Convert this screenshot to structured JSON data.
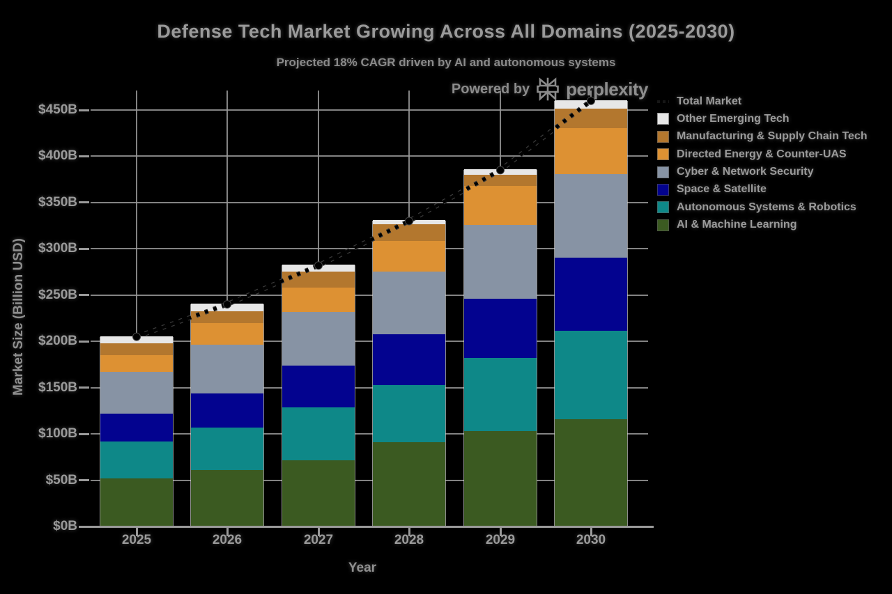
{
  "title": "Defense Tech Market Growing Across All Domains (2025-2030)",
  "subtitle": "Projected 18% CAGR driven by AI and autonomous systems",
  "powered_by": {
    "prefix": "Powered by",
    "brand": "perplexity"
  },
  "colors": {
    "background": "#000000",
    "title_text": "#9a9a9a",
    "subtitle_text": "#8a8a8a",
    "axis_text": "#9a9a9a",
    "gridline": "#9a9a9a",
    "total_line": "#000000"
  },
  "chart_data": {
    "type": "bar",
    "stacked": true,
    "title": "Defense Tech Market Growing Across All Domains (2025-2030)",
    "subtitle": "Projected 18% CAGR driven by AI and autonomous systems",
    "xlabel": "Year",
    "ylabel": "Market Size (Billion USD)",
    "ylim": [
      0,
      470
    ],
    "grid": true,
    "categories": [
      "2025",
      "2026",
      "2027",
      "2028",
      "2029",
      "2030"
    ],
    "yticks": [
      {
        "value": 0,
        "label": "$0B"
      },
      {
        "value": 50,
        "label": "$50B"
      },
      {
        "value": 100,
        "label": "$100B"
      },
      {
        "value": 150,
        "label": "$150B"
      },
      {
        "value": 200,
        "label": "$200B"
      },
      {
        "value": 250,
        "label": "$250B"
      },
      {
        "value": 300,
        "label": "$300B"
      },
      {
        "value": 350,
        "label": "$350B"
      },
      {
        "value": 400,
        "label": "$400B"
      },
      {
        "value": 450,
        "label": "$450B"
      }
    ],
    "series": [
      {
        "name": "AI & Machine Learning",
        "color": "#3b5a21",
        "values": [
          51,
          60,
          71,
          90,
          102,
          115
        ]
      },
      {
        "name": "Autonomous Systems & Robotics",
        "color": "#0e8888",
        "values": [
          40,
          46,
          57,
          62,
          79,
          96
        ]
      },
      {
        "name": "Space & Satellite",
        "color": "#03038f",
        "values": [
          30,
          37,
          45,
          55,
          64,
          79
        ]
      },
      {
        "name": "Cyber & Network Security",
        "color": "#8793a4",
        "values": [
          45,
          53,
          58,
          68,
          80,
          90
        ]
      },
      {
        "name": "Directed Energy & Counter-UAS",
        "color": "#dd9133",
        "values": [
          18,
          23,
          26,
          33,
          42,
          50
        ]
      },
      {
        "name": "Manufacturing & Supply Chain Tech",
        "color": "#b3772e",
        "values": [
          13,
          13,
          18,
          18,
          12,
          21
        ]
      },
      {
        "name": "Other Emerging Tech",
        "color": "#e7e7e7",
        "values": [
          8,
          8,
          7,
          4,
          6,
          9
        ]
      }
    ],
    "totals_line": {
      "name": "Total Market",
      "values": [
        205,
        240,
        282,
        330,
        385,
        460
      ],
      "style": "dotted",
      "color": "#000000",
      "marker": "circle"
    },
    "legend": {
      "position": "right",
      "items_top_to_bottom": [
        {
          "label": "Total Market",
          "swatch": "line",
          "color": "#000000"
        },
        {
          "label": "Other Emerging Tech",
          "swatch": "box",
          "color": "#e7e7e7"
        },
        {
          "label": "Manufacturing & Supply Chain Tech",
          "swatch": "box",
          "color": "#b3772e"
        },
        {
          "label": "Directed Energy & Counter-UAS",
          "swatch": "box",
          "color": "#dd9133"
        },
        {
          "label": "Cyber & Network Security",
          "swatch": "box",
          "color": "#8793a4"
        },
        {
          "label": "Space & Satellite",
          "swatch": "box",
          "color": "#03038f"
        },
        {
          "label": "Autonomous Systems & Robotics",
          "swatch": "box",
          "color": "#0e8888"
        },
        {
          "label": "AI & Machine Learning",
          "swatch": "box",
          "color": "#3b5a21"
        }
      ]
    }
  }
}
